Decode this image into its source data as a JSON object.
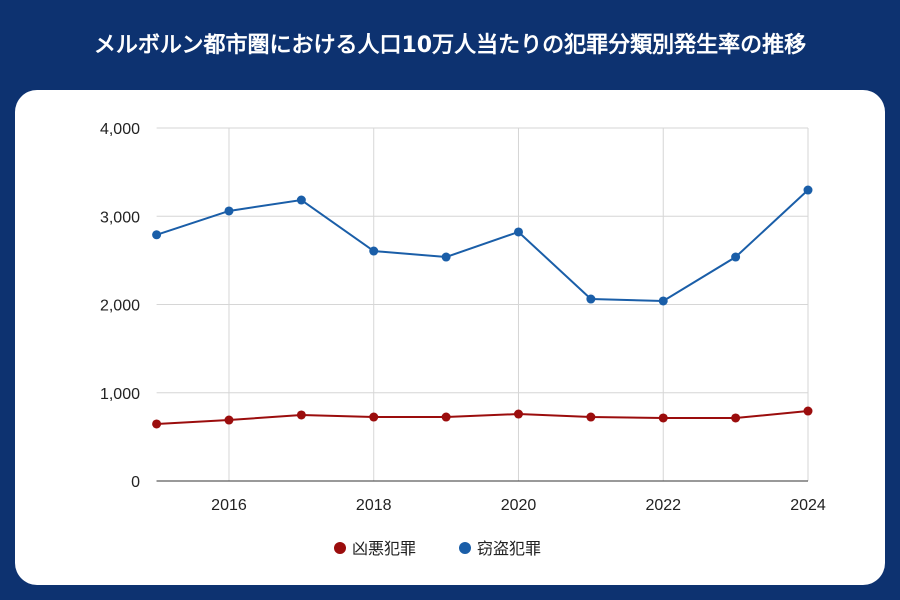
{
  "title": "メルボルン都市圏における人口10万人当たりの犯罪分類別発生率の推移",
  "chart_data": {
    "type": "line",
    "title": "",
    "xlabel": "",
    "ylabel": "",
    "x": [
      2015,
      2016,
      2017,
      2018,
      2019,
      2020,
      2021,
      2022,
      2023,
      2024
    ],
    "xlim": [
      2015,
      2024
    ],
    "ylim": [
      0,
      4000
    ],
    "x_ticks": [
      "2016",
      "2018",
      "2020",
      "2022",
      "2024"
    ],
    "y_ticks": [
      "0",
      "1,000",
      "2,000",
      "3,000",
      "4,000"
    ],
    "grid": true,
    "legend_position": "bottom",
    "series": [
      {
        "name": "凶悪犯罪",
        "color": "#9b0d0d",
        "values": [
          646,
          691,
          748,
          725,
          725,
          759,
          725,
          714,
          714,
          793
        ]
      },
      {
        "name": "窃盗犯罪",
        "color": "#1a5ea8",
        "values": [
          2790,
          3060,
          3184,
          2606,
          2538,
          2822,
          2062,
          2040,
          2538,
          3297
        ]
      }
    ]
  }
}
